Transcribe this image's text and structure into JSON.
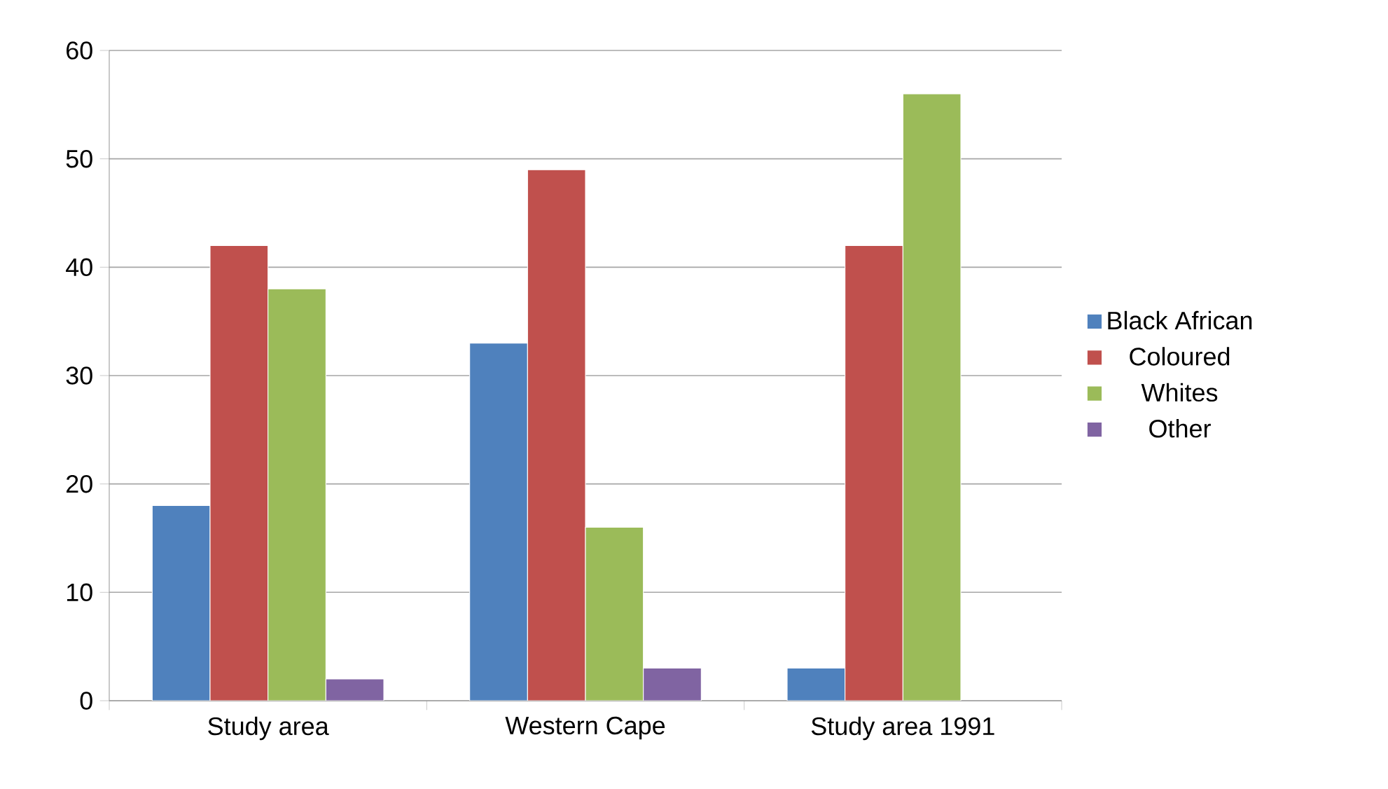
{
  "chart_data": {
    "type": "bar",
    "categories": [
      "Study area",
      "Western Cape",
      "Study area 1991"
    ],
    "series": [
      {
        "name": "Black African",
        "color": "#4f81bd",
        "values": [
          18,
          33,
          3
        ]
      },
      {
        "name": "Coloured",
        "color": "#c0504d",
        "values": [
          42,
          49,
          42
        ]
      },
      {
        "name": "Whites",
        "color": "#9bbb59",
        "values": [
          38,
          16,
          56
        ]
      },
      {
        "name": "Other",
        "color": "#8064a2",
        "values": [
          2,
          3,
          null
        ]
      }
    ],
    "ylim": [
      0,
      60
    ],
    "yticks": [
      0,
      10,
      20,
      30,
      40,
      50,
      60
    ],
    "grid": "y",
    "legend": "right"
  }
}
